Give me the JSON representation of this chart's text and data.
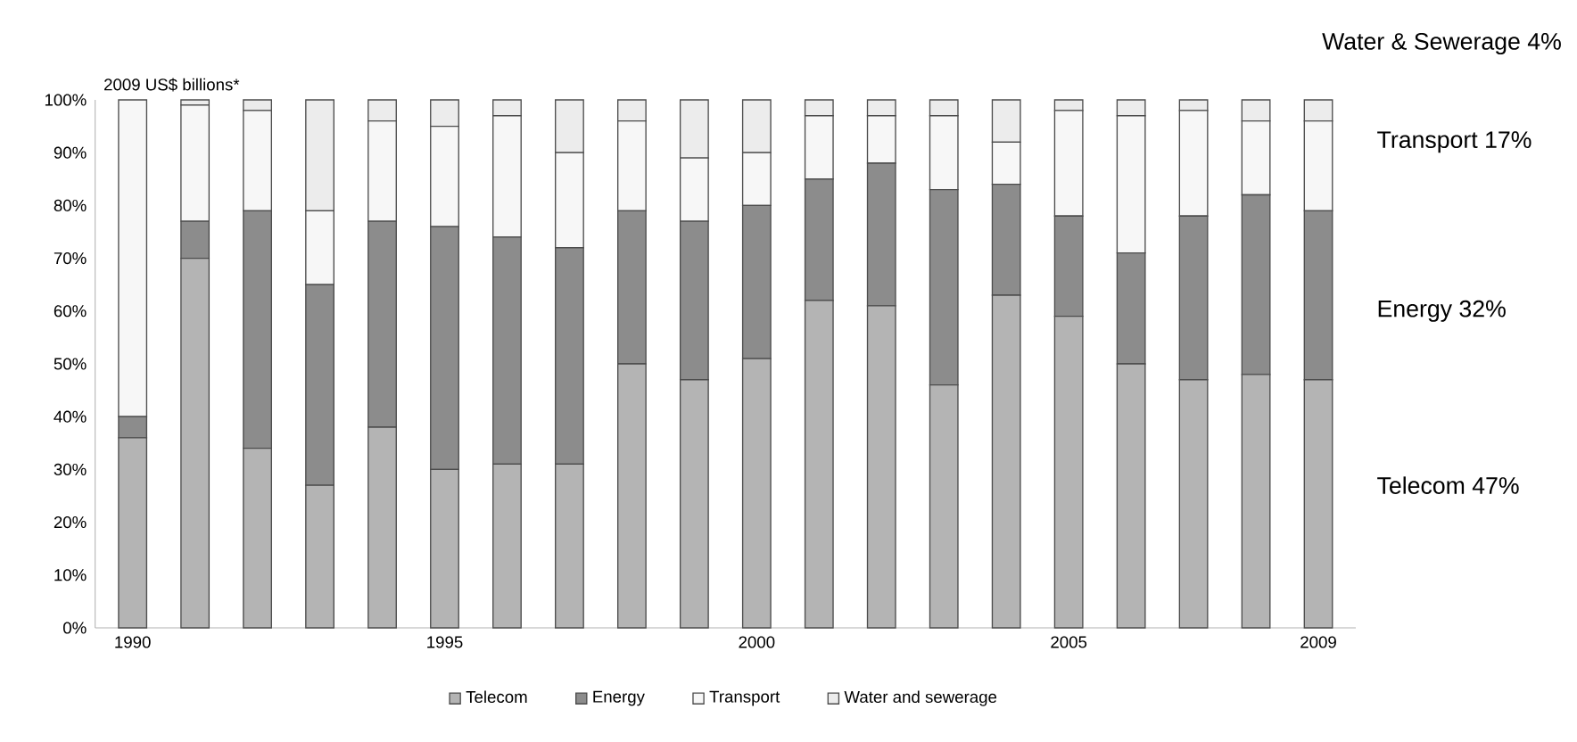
{
  "chart_data": {
    "type": "bar",
    "stacked": true,
    "ylabel": "2009 US$ billions*",
    "categories": [
      "1990",
      null,
      null,
      null,
      null,
      "1995",
      null,
      null,
      null,
      null,
      "2000",
      null,
      null,
      null,
      null,
      "2005",
      null,
      null,
      null,
      "2009"
    ],
    "series": [
      {
        "name": "Telecom",
        "color": "#b4b4b4",
        "values": [
          36,
          70,
          34,
          27,
          38,
          30,
          31,
          31,
          50,
          47,
          51,
          62,
          61,
          46,
          63,
          59,
          50,
          47,
          48,
          47
        ]
      },
      {
        "name": "Energy",
        "color": "#8c8c8c",
        "values": [
          4,
          7,
          45,
          38,
          39,
          46,
          43,
          41,
          29,
          30,
          29,
          23,
          27,
          37,
          21,
          19,
          21,
          31,
          34,
          32
        ]
      },
      {
        "name": "Transport",
        "color": "#f7f7f7",
        "values": [
          60,
          22,
          19,
          14,
          19,
          19,
          23,
          18,
          17,
          12,
          10,
          12,
          9,
          14,
          8,
          20,
          26,
          20,
          14,
          17
        ]
      },
      {
        "name": "Water and sewerage",
        "color": "#ececec",
        "values": [
          0,
          1,
          2,
          21,
          4,
          5,
          3,
          10,
          4,
          11,
          10,
          3,
          3,
          3,
          8,
          2,
          3,
          2,
          4,
          4
        ]
      }
    ],
    "ylim": [
      0,
      100
    ],
    "yticks": [
      {
        "value": 0,
        "label": "0%"
      },
      {
        "value": 10,
        "label": "10%"
      },
      {
        "value": 20,
        "label": "20%"
      },
      {
        "value": 30,
        "label": "30%"
      },
      {
        "value": 40,
        "label": "40%"
      },
      {
        "value": 50,
        "label": "50%"
      },
      {
        "value": 60,
        "label": "60%"
      },
      {
        "value": 70,
        "label": "70%"
      },
      {
        "value": 80,
        "label": "80%"
      },
      {
        "value": 90,
        "label": "90%"
      },
      {
        "value": 100,
        "label": "100%"
      }
    ],
    "legend": "bottom",
    "grid": false,
    "annotations": [
      "Water & Sewerage 4%",
      "Transport 17%",
      "Energy 32%",
      "Telecom 47%"
    ]
  }
}
